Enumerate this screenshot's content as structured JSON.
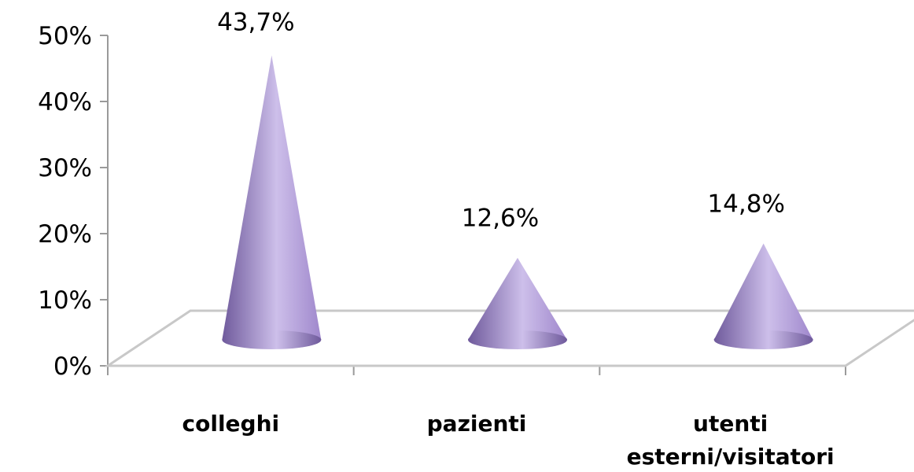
{
  "chart_data": {
    "type": "bar",
    "style": "3d-cone",
    "categories": [
      "colleghi",
      "pazienti",
      "utenti esterni/visitatori"
    ],
    "category_lines": [
      [
        "colleghi"
      ],
      [
        "pazienti"
      ],
      [
        "utenti",
        "esterni/visitatori"
      ]
    ],
    "values": [
      43.7,
      12.6,
      14.8
    ],
    "data_labels": [
      "43,7%",
      "12,6%",
      "14,8%"
    ],
    "y_ticks": [
      "0%",
      "10%",
      "20%",
      "30%",
      "40%",
      "50%"
    ],
    "ylim": [
      0,
      50
    ],
    "grid": false,
    "legend": "none",
    "colors": {
      "cone": "#9f87cc",
      "cone_dark": "#6f5a9c",
      "cone_light": "#cdbfea",
      "floor": "#c8c8c8"
    }
  }
}
